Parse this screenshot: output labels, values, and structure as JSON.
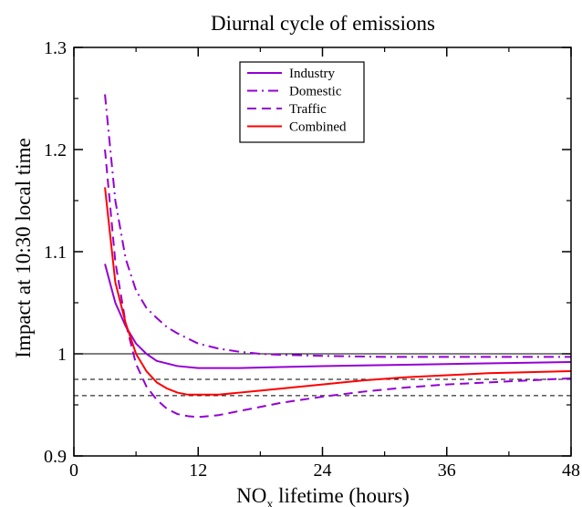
{
  "chart_data": {
    "type": "line",
    "title": "Diurnal cycle of emissions",
    "xlabel": {
      "main": "NO",
      "sub": "x",
      "rest": " lifetime (hours)"
    },
    "ylabel": "Impact at 10:30 local time",
    "xlim": [
      0,
      48
    ],
    "ylim": [
      0.9,
      1.3
    ],
    "xticks": [
      0,
      12,
      24,
      36,
      48
    ],
    "yticks": [
      0.9,
      1.0,
      1.1,
      1.2,
      1.3
    ],
    "ytick_labels": [
      "0.9",
      "1",
      "1.1",
      "1.2",
      "1.3"
    ],
    "reference_lines": [
      1.0,
      0.975,
      0.959
    ],
    "legend_position": "top-center",
    "series": [
      {
        "name": "Industry",
        "color": "#9400d3",
        "style": "solid",
        "x": [
          3,
          4,
          5,
          6,
          7,
          8,
          10,
          12,
          14,
          16,
          20,
          24,
          30,
          36,
          42,
          48
        ],
        "y": [
          1.088,
          1.05,
          1.027,
          1.01,
          1.0,
          0.993,
          0.988,
          0.986,
          0.986,
          0.986,
          0.987,
          0.988,
          0.989,
          0.99,
          0.991,
          0.992
        ]
      },
      {
        "name": "Domestic",
        "color": "#9400d3",
        "style": "dashdot",
        "x": [
          3,
          4,
          5,
          6,
          7,
          8,
          9,
          10,
          12,
          14,
          16,
          18,
          20,
          24,
          30,
          36,
          42,
          48
        ],
        "y": [
          1.254,
          1.15,
          1.093,
          1.062,
          1.045,
          1.035,
          1.026,
          1.02,
          1.01,
          1.005,
          1.002,
          1.0,
          0.999,
          0.998,
          0.997,
          0.997,
          0.997,
          0.997
        ]
      },
      {
        "name": "Traffic",
        "color": "#9400d3",
        "style": "dashed",
        "x": [
          3,
          4,
          5,
          6,
          7,
          8,
          9,
          10,
          11,
          12,
          13,
          14,
          16,
          18,
          20,
          24,
          28,
          32,
          36,
          40,
          44,
          48
        ],
        "y": [
          1.2,
          1.09,
          1.03,
          0.99,
          0.968,
          0.955,
          0.946,
          0.941,
          0.939,
          0.938,
          0.939,
          0.94,
          0.944,
          0.948,
          0.952,
          0.958,
          0.963,
          0.967,
          0.97,
          0.972,
          0.974,
          0.976
        ]
      },
      {
        "name": "Combined",
        "color": "#ff0000",
        "style": "solid",
        "x": [
          3,
          4,
          5,
          6,
          7,
          8,
          9,
          10,
          11,
          12,
          14,
          16,
          18,
          20,
          24,
          28,
          32,
          36,
          40,
          44,
          48
        ],
        "y": [
          1.163,
          1.07,
          1.03,
          1.0,
          0.983,
          0.972,
          0.966,
          0.962,
          0.96,
          0.96,
          0.96,
          0.962,
          0.964,
          0.966,
          0.97,
          0.974,
          0.977,
          0.979,
          0.981,
          0.982,
          0.983
        ]
      }
    ]
  }
}
